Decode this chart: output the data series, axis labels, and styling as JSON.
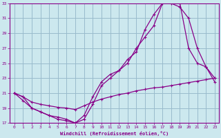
{
  "xlabel": "Windchill (Refroidissement éolien,°C)",
  "xlim": [
    -0.5,
    23.5
  ],
  "ylim": [
    17,
    33
  ],
  "xticks": [
    0,
    1,
    2,
    3,
    4,
    5,
    6,
    7,
    8,
    9,
    10,
    11,
    12,
    13,
    14,
    15,
    16,
    17,
    18,
    19,
    20,
    21,
    22,
    23
  ],
  "yticks": [
    17,
    19,
    21,
    23,
    25,
    27,
    29,
    31,
    33
  ],
  "bg_color": "#cce8ee",
  "line_color": "#880088",
  "grid_color": "#99bbcc",
  "lines": [
    {
      "x": [
        0,
        1,
        2,
        3,
        4,
        5,
        6,
        7,
        8,
        9,
        10,
        11,
        12,
        13,
        14,
        15,
        16,
        17,
        18,
        19,
        20,
        21,
        22,
        23
      ],
      "y": [
        21,
        20,
        19,
        18.5,
        18,
        17.5,
        17.3,
        17,
        17.5,
        19.5,
        22,
        23,
        24,
        25.5,
        26.5,
        29.5,
        31.5,
        33,
        33,
        33,
        27,
        25,
        24.5,
        23
      ]
    },
    {
      "x": [
        0,
        1,
        2,
        3,
        4,
        5,
        6,
        7,
        8,
        9,
        10,
        11,
        12,
        13,
        14,
        15,
        16,
        17,
        18,
        19,
        20,
        21,
        22,
        23
      ],
      "y": [
        21,
        20.5,
        19,
        18.5,
        18,
        17.8,
        17.5,
        17,
        18,
        20.5,
        22.5,
        23.5,
        24,
        25,
        27,
        28.5,
        30,
        33,
        33,
        32.5,
        31,
        27,
        24.5,
        22.5
      ]
    },
    {
      "x": [
        0,
        1,
        2,
        3,
        4,
        5,
        6,
        7,
        8,
        9,
        10,
        11,
        12,
        13,
        14,
        15,
        16,
        17,
        18,
        19,
        20,
        21,
        22,
        23
      ],
      "y": [
        21,
        20.5,
        19.8,
        19.5,
        19.3,
        19.1,
        19,
        18.8,
        19.3,
        19.8,
        20.2,
        20.5,
        20.8,
        21,
        21.3,
        21.5,
        21.7,
        21.8,
        22,
        22.2,
        22.4,
        22.6,
        22.8,
        23
      ]
    }
  ]
}
